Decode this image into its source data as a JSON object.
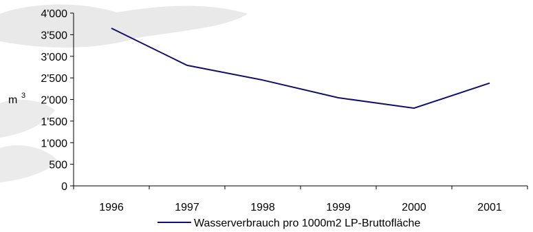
{
  "chart_data": {
    "type": "line",
    "title": "",
    "xlabel": "",
    "ylabel": "m",
    "ylabel_superscript": "3",
    "categories": [
      "1996",
      "1997",
      "1998",
      "1999",
      "2000",
      "2001"
    ],
    "series": [
      {
        "name": "Wasserverbrauch pro 1000m2 LP-Bruttofläche",
        "values": [
          3650,
          2790,
          2450,
          2040,
          1800,
          2380
        ],
        "color": "#10106b"
      }
    ],
    "ylim": [
      0,
      4000
    ],
    "yticks": [
      0,
      500,
      1000,
      1500,
      2000,
      2500,
      3000,
      3500,
      4000
    ],
    "ytick_labels": [
      "0",
      "500",
      "1'000",
      "1'500",
      "2'000",
      "2'500",
      "3'000",
      "3'500",
      "4'000"
    ],
    "grid": false,
    "legend_position": "bottom"
  }
}
